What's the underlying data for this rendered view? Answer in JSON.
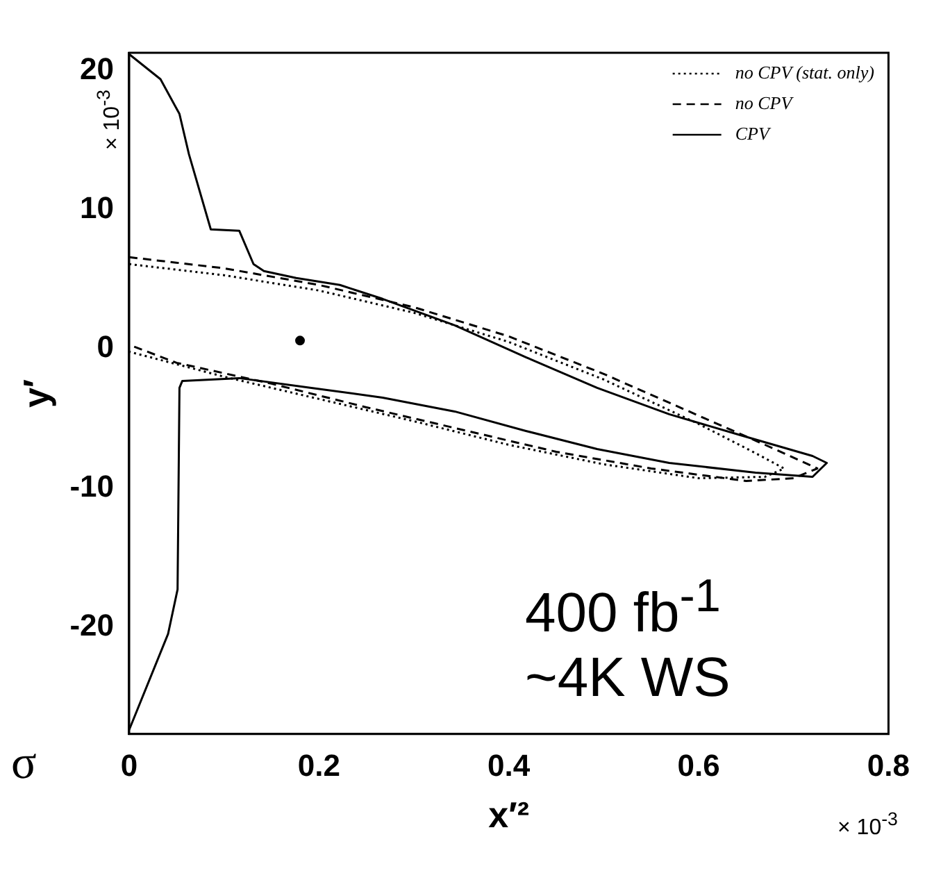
{
  "chart_data": {
    "type": "line",
    "xlabel": "x′²",
    "ylabel": "y′",
    "xlim": [
      0,
      0.8
    ],
    "xticks": [
      0,
      0.2,
      0.4,
      0.6,
      0.8
    ],
    "ylim": [
      -27.7,
      21.3
    ],
    "yticks": [
      -20,
      -10,
      0,
      10,
      20
    ],
    "grid": false,
    "legend": "top right",
    "marker": "none",
    "series": [
      {
        "name": "no CPV (stat. only)",
        "color": "#000000",
        "line_style": "dotted",
        "x": [
          0,
          0.1,
          0.2,
          0.3,
          0.4,
          0.5,
          0.6,
          0.66,
          0.69,
          0.67,
          0.6,
          0.5,
          0.4,
          0.3,
          0.2,
          0.1,
          0
        ],
        "values": [
          6.1,
          5.3,
          4.2,
          2.6,
          0.5,
          -2.2,
          -5.4,
          -7.5,
          -8.6,
          -9.2,
          -9.3,
          -8.3,
          -6.9,
          -5.2,
          -3.6,
          -2.0,
          -0.2
        ]
      },
      {
        "name": "no CPV",
        "color": "#000000",
        "line_style": "dashed",
        "x": [
          0,
          0.1,
          0.2,
          0.3,
          0.4,
          0.5,
          0.6,
          0.68,
          0.725,
          0.7,
          0.65,
          0.55,
          0.45,
          0.35,
          0.25,
          0.15,
          0.05,
          0
        ],
        "values": [
          6.6,
          5.8,
          4.6,
          3.0,
          0.9,
          -1.8,
          -4.8,
          -7.2,
          -8.6,
          -9.3,
          -9.5,
          -8.6,
          -7.4,
          -5.8,
          -4.2,
          -2.5,
          -1.0,
          0.3
        ]
      },
      {
        "name": "CPV",
        "color": "#000000",
        "line_style": "solid",
        "x": [
          0,
          0.033,
          0.053,
          0.063,
          0.086,
          0.116,
          0.131,
          0.142,
          0.176,
          0.222,
          0.267,
          0.343,
          0.418,
          0.493,
          0.569,
          0.644,
          0.72,
          0.735,
          0.72,
          0.66,
          0.569,
          0.493,
          0.418,
          0.343,
          0.267,
          0.192,
          0.116,
          0.056,
          0.053,
          0.051,
          0.041,
          0
        ],
        "values": [
          21.2,
          19.4,
          16.9,
          14.0,
          8.6,
          8.5,
          6.1,
          5.6,
          5.1,
          4.6,
          3.6,
          1.7,
          -0.6,
          -2.8,
          -4.7,
          -6.2,
          -7.7,
          -8.2,
          -9.2,
          -8.9,
          -8.2,
          -7.2,
          -5.9,
          -4.5,
          -3.5,
          -2.8,
          -2.1,
          -2.3,
          -2.8,
          -17.3,
          -20.5,
          -27.4
        ]
      },
      {
        "type": "scatter",
        "color": "#000000",
        "marker": "circle",
        "x": [
          0.18
        ],
        "values": [
          0.6
        ]
      }
    ],
    "annotations": [
      "400 fb$^{-1}$",
      "~4K WS",
      "× 10$^{-3}$",
      "× 10$^{-3}$",
      "σ"
    ]
  }
}
